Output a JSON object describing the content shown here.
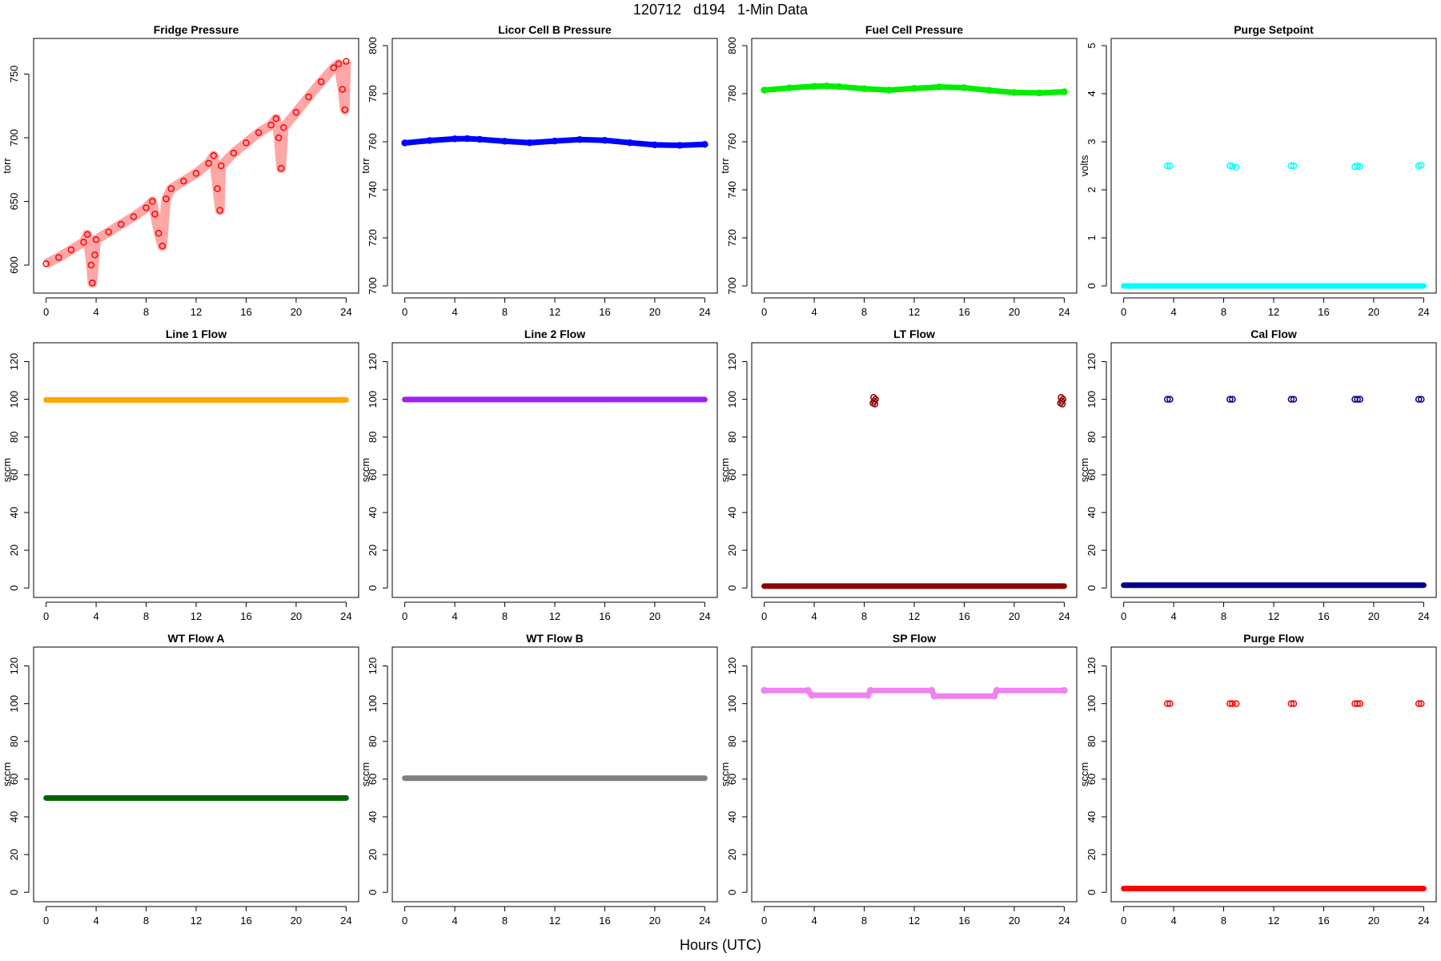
{
  "figure": {
    "title": "120712   d194   1-Min Data",
    "xlabel": "Hours (UTC)"
  },
  "chart_data": [
    {
      "type": "scatter",
      "title": "Fridge Pressure",
      "ylabel": "torr",
      "color": "#ff0000",
      "xlim": [
        -1,
        25
      ],
      "ylim": [
        578,
        778
      ],
      "xticks": [
        0,
        4,
        8,
        12,
        16,
        20,
        24
      ],
      "yticks": [
        600,
        650,
        700,
        750
      ],
      "series": [
        {
          "x": [
            0,
            1,
            2,
            3,
            3.3,
            3.6,
            3.7,
            3.9,
            4,
            5,
            6,
            7,
            8,
            8.5,
            8.7,
            9,
            9.3,
            9.6,
            10,
            11,
            12,
            13,
            13.4,
            13.7,
            13.9,
            14,
            15,
            16,
            17,
            18,
            18.4,
            18.6,
            18.8,
            19,
            20,
            21,
            22,
            23,
            23.4,
            23.7,
            23.9,
            24
          ],
          "y": [
            601,
            606,
            612,
            618,
            624,
            600,
            586,
            608,
            620,
            626,
            632,
            638,
            645,
            650,
            640,
            625,
            615,
            652,
            660,
            666,
            672,
            680,
            686,
            660,
            643,
            678,
            688,
            696,
            704,
            710,
            715,
            700,
            676,
            708,
            720,
            732,
            744,
            755,
            758,
            738,
            722,
            760
          ]
        }
      ]
    },
    {
      "type": "scatter",
      "title": "Licor Cell B Pressure",
      "ylabel": "torr",
      "color": "#0000ff",
      "xlim": [
        -1,
        25
      ],
      "ylim": [
        697,
        803
      ],
      "xticks": [
        0,
        4,
        8,
        12,
        16,
        20,
        24
      ],
      "yticks": [
        700,
        720,
        740,
        760,
        780,
        800
      ],
      "series": [
        {
          "x": [
            0,
            2,
            4,
            5,
            6,
            8,
            10,
            12,
            14,
            16,
            18,
            20,
            22,
            24
          ],
          "y": [
            759.5,
            760.5,
            761.2,
            761.3,
            761,
            760.2,
            759.6,
            760.3,
            760.9,
            760.6,
            759.6,
            758.7,
            758.5,
            758.9
          ]
        }
      ]
    },
    {
      "type": "scatter",
      "title": "Fuel Cell Pressure",
      "ylabel": "torr",
      "color": "#00ee00",
      "xlim": [
        -1,
        25
      ],
      "ylim": [
        697,
        803
      ],
      "xticks": [
        0,
        4,
        8,
        12,
        16,
        20,
        24
      ],
      "yticks": [
        700,
        720,
        740,
        760,
        780,
        800
      ],
      "series": [
        {
          "x": [
            0,
            2,
            4,
            5,
            6,
            8,
            10,
            12,
            14,
            16,
            18,
            20,
            22,
            24
          ],
          "y": [
            781.5,
            782.4,
            783.1,
            783.2,
            782.9,
            782.1,
            781.5,
            782.2,
            782.8,
            782.5,
            781.4,
            780.5,
            780.3,
            780.8
          ]
        }
      ]
    },
    {
      "type": "scatter",
      "title": "Purge Setpoint",
      "ylabel": "volts",
      "color": "#00ffff",
      "xlim": [
        -1,
        25
      ],
      "ylim": [
        -0.15,
        5.15
      ],
      "xticks": [
        0,
        4,
        8,
        12,
        16,
        20,
        24
      ],
      "yticks": [
        0,
        1,
        2,
        3,
        4,
        5
      ],
      "baseline": {
        "x_range": [
          0,
          24
        ],
        "y": 0
      },
      "series": [
        {
          "x": [
            3.5,
            3.7,
            8.5,
            8.7,
            9,
            13.4,
            13.6,
            18.5,
            18.7,
            18.9,
            23.6,
            23.8
          ],
          "y": [
            2.5,
            2.5,
            2.5,
            2.49,
            2.47,
            2.5,
            2.5,
            2.48,
            2.5,
            2.48,
            2.5,
            2.51
          ]
        }
      ]
    },
    {
      "type": "scatter",
      "title": "Line 1 Flow",
      "ylabel": "sccm",
      "color": "#ffa500",
      "xlim": [
        -1,
        25
      ],
      "ylim": [
        -5,
        130
      ],
      "xticks": [
        0,
        4,
        8,
        12,
        16,
        20,
        24
      ],
      "yticks": [
        0,
        20,
        40,
        60,
        80,
        100,
        120
      ],
      "baseline": {
        "x_range": [
          0,
          24
        ],
        "y": 99.7
      },
      "series": []
    },
    {
      "type": "scatter",
      "title": "Line 2 Flow",
      "ylabel": "sccm",
      "color": "#a020f0",
      "xlim": [
        -1,
        25
      ],
      "ylim": [
        -5,
        130
      ],
      "xticks": [
        0,
        4,
        8,
        12,
        16,
        20,
        24
      ],
      "yticks": [
        0,
        20,
        40,
        60,
        80,
        100,
        120
      ],
      "baseline": {
        "x_range": [
          0,
          24
        ],
        "y": 99.9
      },
      "series": []
    },
    {
      "type": "scatter",
      "title": "LT Flow",
      "ylabel": "sccm",
      "color": "#8b0000",
      "xlim": [
        -1,
        25
      ],
      "ylim": [
        -5,
        130
      ],
      "xticks": [
        0,
        4,
        8,
        12,
        16,
        20,
        24
      ],
      "yticks": [
        0,
        20,
        40,
        60,
        80,
        100,
        120
      ],
      "baseline": {
        "x_range": [
          0,
          24
        ],
        "y": 1
      },
      "series": [
        {
          "x": [
            8.7,
            8.8,
            8.9,
            8.75,
            8.85,
            23.7,
            23.8,
            23.9,
            23.75,
            23.85
          ],
          "y": [
            98,
            99,
            100,
            101,
            97.5,
            98,
            99,
            100,
            101,
            97.5
          ]
        }
      ]
    },
    {
      "type": "scatter",
      "title": "Cal Flow",
      "ylabel": "sccm",
      "color": "#00008b",
      "xlim": [
        -1,
        25
      ],
      "ylim": [
        -5,
        130
      ],
      "xticks": [
        0,
        4,
        8,
        12,
        16,
        20,
        24
      ],
      "yticks": [
        0,
        20,
        40,
        60,
        80,
        100,
        120
      ],
      "baseline": {
        "x_range": [
          0,
          24
        ],
        "y": 1.5
      },
      "series": [
        {
          "x": [
            3.5,
            3.7,
            8.5,
            8.7,
            13.4,
            13.6,
            18.5,
            18.7,
            18.9,
            23.6,
            23.8
          ],
          "y": [
            100,
            100,
            100,
            100,
            100,
            100,
            100,
            100,
            100,
            100,
            100
          ]
        }
      ]
    },
    {
      "type": "scatter",
      "title": "WT Flow A",
      "ylabel": "sccm",
      "color": "#006400",
      "xlim": [
        -1,
        25
      ],
      "ylim": [
        -5,
        130
      ],
      "xticks": [
        0,
        4,
        8,
        12,
        16,
        20,
        24
      ],
      "yticks": [
        0,
        20,
        40,
        60,
        80,
        100,
        120
      ],
      "baseline": {
        "x_range": [
          0,
          24
        ],
        "y": 50
      },
      "series": []
    },
    {
      "type": "scatter",
      "title": "WT Flow B",
      "ylabel": "sccm",
      "color": "#808080",
      "xlim": [
        -1,
        25
      ],
      "ylim": [
        -5,
        130
      ],
      "xticks": [
        0,
        4,
        8,
        12,
        16,
        20,
        24
      ],
      "yticks": [
        0,
        20,
        40,
        60,
        80,
        100,
        120
      ],
      "baseline": {
        "x_range": [
          0,
          24
        ],
        "y": 60.5
      },
      "series": []
    },
    {
      "type": "scatter",
      "title": "SP Flow",
      "ylabel": "sccm",
      "color": "#ee82ee",
      "xlim": [
        -1,
        25
      ],
      "ylim": [
        -5,
        130
      ],
      "xticks": [
        0,
        4,
        8,
        12,
        16,
        20,
        24
      ],
      "yticks": [
        0,
        20,
        40,
        60,
        80,
        100,
        120
      ],
      "series": [
        {
          "x": [
            0,
            3.5,
            3.8,
            8.3,
            8.5,
            13.4,
            13.6,
            18.4,
            18.6,
            24
          ],
          "y": [
            107,
            107,
            104.5,
            104.5,
            107,
            107,
            104,
            104,
            107,
            107
          ]
        }
      ]
    },
    {
      "type": "scatter",
      "title": "Purge Flow",
      "ylabel": "sccm",
      "color": "#ff0000",
      "xlim": [
        -1,
        25
      ],
      "ylim": [
        -5,
        130
      ],
      "xticks": [
        0,
        4,
        8,
        12,
        16,
        20,
        24
      ],
      "yticks": [
        0,
        20,
        40,
        60,
        80,
        100,
        120
      ],
      "baseline": {
        "x_range": [
          0,
          24
        ],
        "y": 2
      },
      "series": [
        {
          "x": [
            3.5,
            3.7,
            8.5,
            8.7,
            9,
            13.4,
            13.6,
            18.5,
            18.7,
            18.9,
            23.6,
            23.8
          ],
          "y": [
            100,
            100,
            100,
            100,
            100,
            100,
            100,
            100,
            100,
            100,
            100,
            100
          ]
        }
      ]
    }
  ]
}
